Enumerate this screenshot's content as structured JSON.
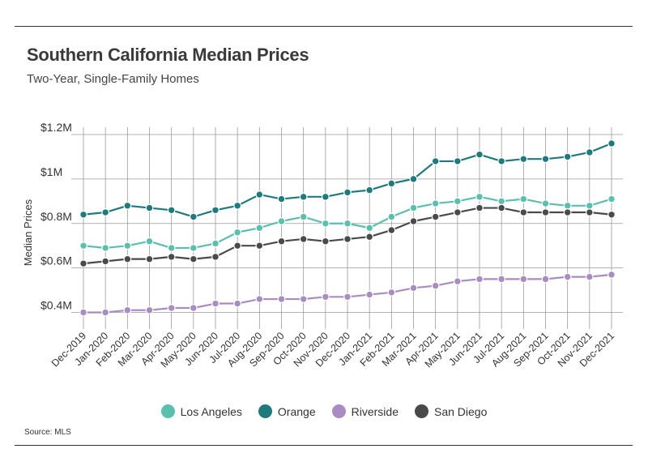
{
  "header": {
    "title": "Southern California Median Prices",
    "subtitle": "Two-Year, Single-Family Homes"
  },
  "footer": {
    "source": "Source:  MLS"
  },
  "chart_data": {
    "type": "line",
    "title": "Southern California Median Prices",
    "subtitle": "Two-Year, Single-Family Homes",
    "xlabel": "",
    "ylabel": "Median Prices",
    "ylim": [
      0.35,
      1.2
    ],
    "yticks": [
      0.4,
      0.6,
      0.8,
      1.0,
      1.2
    ],
    "ytick_labels": [
      "$0.4M",
      "$0.6M",
      "$0.8M",
      "$1M",
      "$1.2M"
    ],
    "grid": "vertical and horizontal",
    "legend_position": "bottom-center",
    "categories": [
      "Dec-2019",
      "Jan-2020",
      "Feb-2020",
      "Mar-2020",
      "Apr-2020",
      "May-2020",
      "Jun-2020",
      "Jul-2020",
      "Aug-2020",
      "Sep-2020",
      "Oct-2020",
      "Nov-2020",
      "Dec-2020",
      "Jan-2021",
      "Feb-2021",
      "Mar-2021",
      "Apr-2021",
      "May-2021",
      "Jun-2021",
      "Jul-2021",
      "Aug-2021",
      "Sep-2021",
      "Oct-2021",
      "Nov-2021",
      "Dec-2021"
    ],
    "series": [
      {
        "name": "Los Angeles",
        "color": "#5bbfad",
        "values": [
          0.7,
          0.69,
          0.7,
          0.72,
          0.69,
          0.69,
          0.71,
          0.76,
          0.78,
          0.81,
          0.83,
          0.8,
          0.8,
          0.78,
          0.83,
          0.87,
          0.89,
          0.9,
          0.92,
          0.9,
          0.91,
          0.89,
          0.88,
          0.88,
          0.91
        ]
      },
      {
        "name": "Orange",
        "color": "#1f7a7e",
        "values": [
          0.84,
          0.85,
          0.88,
          0.87,
          0.86,
          0.83,
          0.86,
          0.88,
          0.93,
          0.91,
          0.92,
          0.92,
          0.94,
          0.95,
          0.98,
          1.0,
          1.08,
          1.08,
          1.11,
          1.08,
          1.09,
          1.09,
          1.1,
          1.12,
          1.16
        ]
      },
      {
        "name": "Riverside",
        "color": "#a98cc2",
        "values": [
          0.4,
          0.4,
          0.41,
          0.41,
          0.42,
          0.42,
          0.44,
          0.44,
          0.46,
          0.46,
          0.46,
          0.47,
          0.47,
          0.48,
          0.49,
          0.51,
          0.52,
          0.54,
          0.55,
          0.55,
          0.55,
          0.55,
          0.56,
          0.56,
          0.57
        ]
      },
      {
        "name": "San Diego",
        "color": "#4a4a4a",
        "values": [
          0.62,
          0.63,
          0.64,
          0.64,
          0.65,
          0.64,
          0.65,
          0.7,
          0.7,
          0.72,
          0.73,
          0.72,
          0.73,
          0.74,
          0.77,
          0.81,
          0.83,
          0.85,
          0.87,
          0.87,
          0.85,
          0.85,
          0.85,
          0.85,
          0.84
        ]
      }
    ]
  }
}
